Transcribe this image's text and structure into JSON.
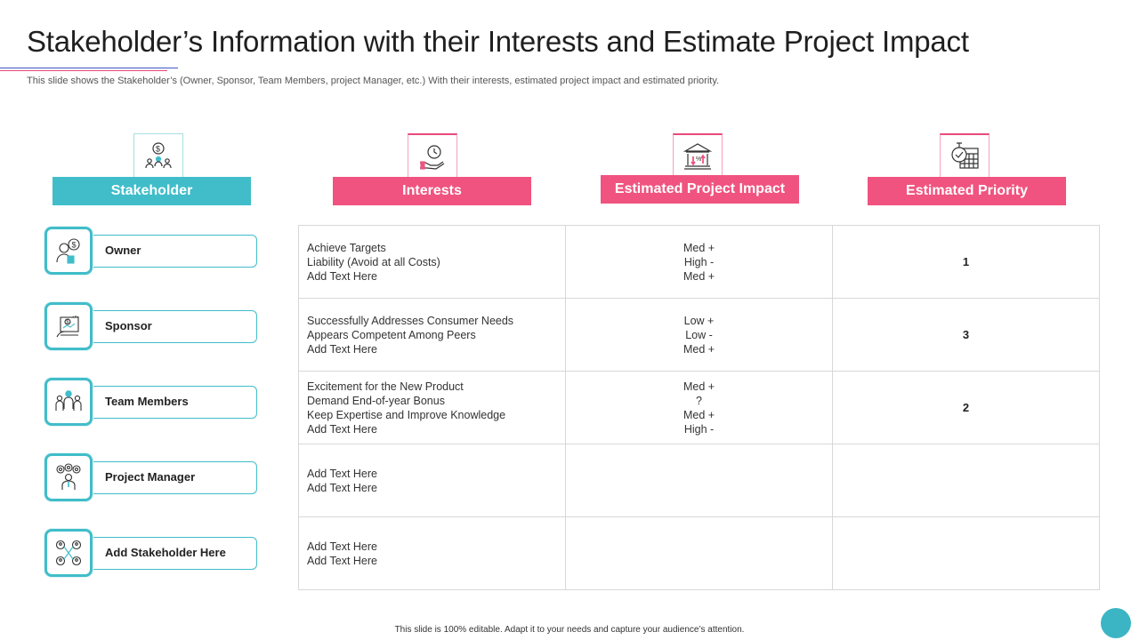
{
  "title": "Stakeholder’s Information with their Interests and Estimate Project Impact",
  "subtitle": "This slide shows the Stakeholder’s (Owner, Sponsor, Team Members, project Manager, etc.) With their interests, estimated project impact and estimated priority.",
  "headers": {
    "stakeholder": "Stakeholder",
    "interests": "Interests",
    "impact": "Estimated Project Impact",
    "priority": "Estimated Priority"
  },
  "header_icons": [
    "dollar-people-icon",
    "clock-hand-icon",
    "bank-percent-icon",
    "stopwatch-calendar-icon"
  ],
  "stakeholders": [
    {
      "label": "Owner",
      "icon": "owner-icon"
    },
    {
      "label": "Sponsor",
      "icon": "sponsor-icon"
    },
    {
      "label": "Team Members",
      "icon": "team-members-icon"
    },
    {
      "label": "Project Manager",
      "icon": "project-manager-icon"
    },
    {
      "label": "Add Stakeholder Here",
      "icon": "network-people-icon"
    }
  ],
  "rows": [
    {
      "interests": [
        "Achieve Targets",
        "Liability (Avoid at all Costs)",
        "Add Text Here"
      ],
      "impact": [
        "Med +",
        "High -",
        "Med +"
      ],
      "priority": "1"
    },
    {
      "interests": [
        "Successfully Addresses Consumer Needs",
        "Appears Competent Among Peers",
        "Add Text Here"
      ],
      "impact": [
        "Low +",
        "Low -",
        "Med +"
      ],
      "priority": "3"
    },
    {
      "interests": [
        "Excitement for the New Product",
        "Demand End-of-year Bonus",
        "Keep Expertise and Improve  Knowledge",
        "Add Text Here"
      ],
      "impact": [
        "Med +",
        "?",
        "Med +",
        "High -"
      ],
      "priority": "2"
    },
    {
      "interests": [
        "Add Text Here",
        "Add Text Here"
      ],
      "impact": [],
      "priority": ""
    },
    {
      "interests": [
        "Add Text Here",
        "Add Text Here"
      ],
      "impact": [],
      "priority": ""
    }
  ],
  "footer": "This slide is 100% editable.  Adapt it to your needs and capture your audience’s attention.",
  "colors": {
    "teal": "#40bdc9",
    "pink": "#f0537f"
  }
}
